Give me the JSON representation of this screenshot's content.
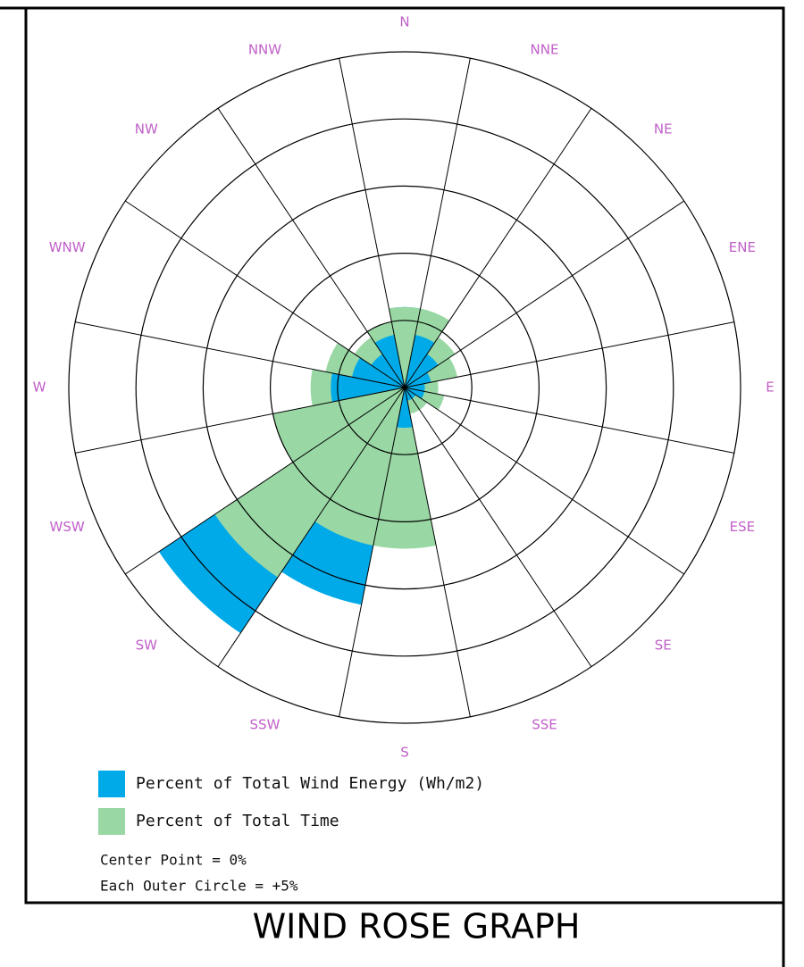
{
  "chart_data": {
    "type": "windrose",
    "title": "WIND ROSE GRAPH",
    "categories": [
      "N",
      "NNE",
      "NE",
      "ENE",
      "E",
      "ESE",
      "SE",
      "SSE",
      "S",
      "SSW",
      "SW",
      "WSW",
      "W",
      "WNW",
      "NW",
      "NNW"
    ],
    "series": [
      {
        "name": "Percent of Total Wind Energy (Wh/m2)",
        "color": "#00aae8",
        "values": [
          6,
          4,
          3,
          2,
          1.5,
          1.5,
          1,
          1,
          3,
          16.5,
          22,
          10,
          5.5,
          4,
          3,
          4
        ]
      },
      {
        "name": "Percent of Total Time",
        "color": "#99d8a4",
        "values": [
          6,
          6,
          4.5,
          4,
          2.5,
          3,
          2,
          2,
          12,
          12,
          17,
          10,
          7,
          6,
          4.5,
          5
        ]
      }
    ],
    "rlim": [
      0,
      25
    ],
    "rticks": [
      5,
      10,
      15,
      20,
      25
    ],
    "notes": [
      "Center Point = 0%",
      "Each Outer Circle = +5%"
    ]
  }
}
